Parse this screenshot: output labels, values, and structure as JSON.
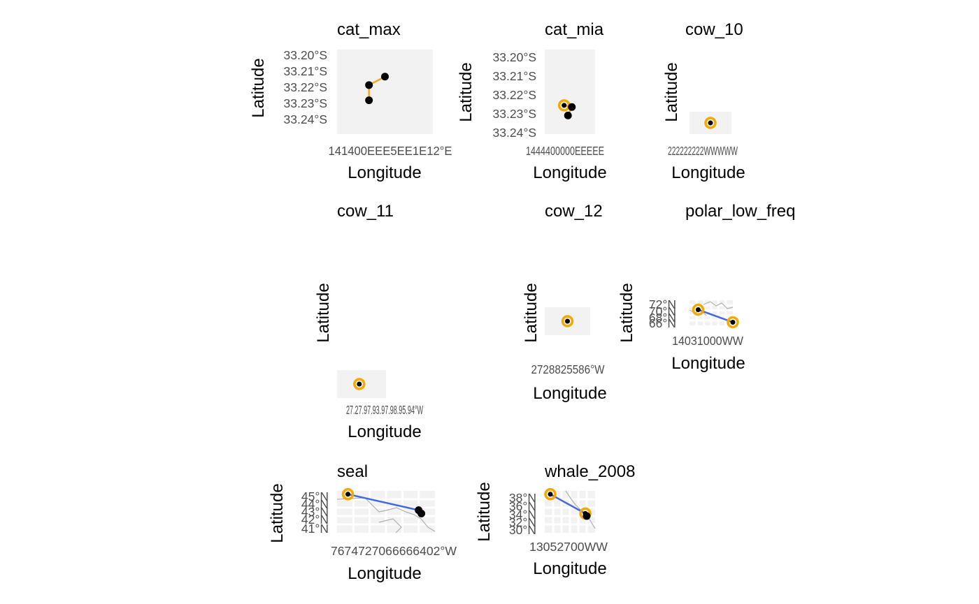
{
  "figure": {
    "xlabel": "Longitude",
    "ylabel": "Latitude"
  },
  "colors": {
    "panel_bg": "#f2f2f2",
    "grid": "#e6e6e6",
    "track_line": "#4169e1",
    "track_line_alt": "#f5a623",
    "point": "#000000",
    "highlight": "#f5a800",
    "land_outline": "#b0b0b0",
    "tick_text": "#4d4d4d"
  },
  "chart_data": [
    {
      "title": "cat_max",
      "type": "scatter",
      "xlabel": "Longitude",
      "ylabel": "Latitude",
      "y_tick_labels": [
        "33.20°S",
        "33.21°S",
        "33.22°S",
        "33.23°S",
        "33.24°S"
      ],
      "x_tick_labels_raw": "141400EEE5EE1E12°E",
      "points": [
        {
          "lon": 141.06,
          "lat": -33.211,
          "highlight": false
        },
        {
          "lon": 141.04,
          "lat": -33.216,
          "highlight": false
        },
        {
          "lon": 141.04,
          "lat": -33.225,
          "highlight": false
        }
      ],
      "track_color": "#f5a623"
    },
    {
      "title": "cat_mia",
      "type": "scatter",
      "xlabel": "Longitude",
      "ylabel": "Latitude",
      "y_tick_labels": [
        "33.20°S",
        "33.21°S",
        "33.22°S",
        "33.23°S",
        "33.24°S"
      ],
      "x_tick_labels_raw": "1444400000EEEEE",
      "points": [
        {
          "lon": 144.02,
          "lat": -33.228,
          "highlight": true
        },
        {
          "lon": 144.03,
          "lat": -33.229,
          "highlight": false
        },
        {
          "lon": 144.025,
          "lat": -33.234,
          "highlight": false
        }
      ],
      "track_color": "#f5a623"
    },
    {
      "title": "cow_10",
      "type": "scatter",
      "xlabel": "Longitude",
      "ylabel": "Latitude",
      "y_tick_labels": [],
      "x_tick_labels_raw": "222222222WWWWW",
      "points": [
        {
          "lon": -27.9,
          "lat": 38.6,
          "highlight": true
        }
      ],
      "track_color": "#f5a623"
    },
    {
      "title": "cow_11",
      "type": "scatter",
      "xlabel": "Longitude",
      "ylabel": "Latitude",
      "y_tick_labels": [],
      "x_tick_labels_raw": "27.27.97.93.97.98.95.94°W",
      "points": [
        {
          "lon": -27.95,
          "lat": 38.6,
          "highlight": true
        }
      ],
      "track_color": "#f5a623"
    },
    {
      "title": "cow_12",
      "type": "scatter",
      "xlabel": "Longitude",
      "ylabel": "Latitude",
      "y_tick_labels": [],
      "x_tick_labels_raw": "2728825586°W",
      "points": [
        {
          "lon": -27.9,
          "lat": 38.6,
          "highlight": true
        }
      ],
      "track_color": "#f5a623"
    },
    {
      "title": "polar_low_freq",
      "type": "scatter",
      "xlabel": "Longitude",
      "ylabel": "Latitude",
      "y_tick_labels": [
        "72°N",
        "70°N",
        "68°N",
        "66°N"
      ],
      "x_tick_labels_raw": "14031000WW",
      "points": [
        {
          "lon": -150,
          "lat": 70,
          "highlight": true
        },
        {
          "lon": -130,
          "lat": 66,
          "highlight": true
        }
      ],
      "track_color": "#4169e1"
    },
    {
      "title": "seal",
      "type": "scatter",
      "xlabel": "Longitude",
      "ylabel": "Latitude",
      "y_tick_labels": [
        "45°N",
        "44°N",
        "43°N",
        "42°N",
        "41°N"
      ],
      "x_tick_labels_raw": "7674727066666402°W",
      "points": [
        {
          "lon": -76,
          "lat": 45.1,
          "highlight": true
        },
        {
          "lon": -63,
          "lat": 43.2,
          "highlight": false
        },
        {
          "lon": -62.5,
          "lat": 42.8,
          "highlight": false
        }
      ],
      "track_color": "#4169e1"
    },
    {
      "title": "whale_2008",
      "type": "scatter",
      "xlabel": "Longitude",
      "ylabel": "Latitude",
      "y_tick_labels": [
        "38°N",
        "36°N",
        "34°N",
        "32°N",
        "30°N"
      ],
      "x_tick_labels_raw": "13052700WW",
      "points": [
        {
          "lon": -130,
          "lat": 38.2,
          "highlight": true
        },
        {
          "lon": -117.5,
          "lat": 33.6,
          "highlight": true
        },
        {
          "lon": -117,
          "lat": 33.0,
          "highlight": false
        }
      ],
      "track_color": "#4169e1"
    }
  ]
}
